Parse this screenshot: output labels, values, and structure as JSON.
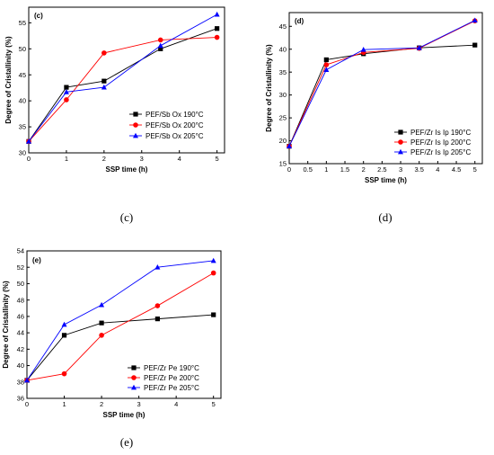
{
  "chart_data": [
    {
      "type": "line",
      "panel_tag": "(c)",
      "caption": "(c)",
      "xlabel": "SSP time (h)",
      "ylabel": "Degree of Cristallinity (%)",
      "xlim": [
        0,
        5.2
      ],
      "ylim": [
        30,
        58
      ],
      "xticks": [
        0,
        1,
        2,
        3,
        4,
        5
      ],
      "yticks": [
        30,
        35,
        40,
        45,
        50,
        55
      ],
      "legend_position": "lower-right",
      "x": [
        0,
        1,
        2,
        3.5,
        5
      ],
      "series": [
        {
          "name": "PEF/Sb Ox  190°C",
          "color": "#000000",
          "marker": "square",
          "values": [
            32.2,
            42.6,
            43.8,
            50.0,
            53.9
          ]
        },
        {
          "name": "PEF/Sb Ox  200°C",
          "color": "#ff0000",
          "marker": "circle",
          "values": [
            32.2,
            40.2,
            49.2,
            51.7,
            52.2
          ]
        },
        {
          "name": "PEF/Sb Ox 205°C",
          "color": "#0000ff",
          "marker": "triangle",
          "values": [
            32.2,
            41.7,
            42.6,
            50.6,
            56.6
          ]
        }
      ]
    },
    {
      "type": "line",
      "panel_tag": "(d)",
      "caption": "(d)",
      "xlabel": "SSP time (h)",
      "ylabel": "Degree of Cristallinity (%)",
      "xlim": [
        0,
        5.2
      ],
      "ylim": [
        15,
        48
      ],
      "xticks": [
        0,
        0.5,
        1,
        1.5,
        2,
        2.5,
        3,
        3.5,
        4,
        4.5,
        5
      ],
      "yticks": [
        15,
        20,
        25,
        30,
        35,
        40,
        45
      ],
      "legend_position": "lower-right",
      "x": [
        0,
        1,
        2,
        3.5,
        5
      ],
      "series": [
        {
          "name": "PEF/Zr Is Ip 190°C",
          "color": "#000000",
          "marker": "square",
          "values": [
            18.8,
            37.7,
            39.0,
            40.3,
            40.9
          ]
        },
        {
          "name": "PEF/Zr Is Ip 200°C",
          "color": "#ff0000",
          "marker": "circle",
          "values": [
            18.8,
            36.6,
            39.3,
            40.2,
            46.2
          ]
        },
        {
          "name": "PEF/Zr Is Ip 205°C",
          "color": "#0000ff",
          "marker": "triangle",
          "values": [
            18.8,
            35.5,
            39.9,
            40.3,
            46.3
          ]
        }
      ]
    },
    {
      "type": "line",
      "panel_tag": "(e)",
      "caption": "(e)",
      "xlabel": "SSP time (h)",
      "ylabel": "Degree of Cristallinity (%)",
      "xlim": [
        0,
        5.2
      ],
      "ylim": [
        36,
        54
      ],
      "xticks": [
        0,
        1,
        2,
        3,
        4,
        5
      ],
      "yticks": [
        36,
        38,
        40,
        42,
        44,
        46,
        48,
        50,
        52,
        54
      ],
      "legend_position": "lower-right",
      "x": [
        0,
        1,
        2,
        3.5,
        5
      ],
      "series": [
        {
          "name": "PEF/Zr Pe 190°C",
          "color": "#000000",
          "marker": "square",
          "values": [
            38.2,
            43.7,
            45.2,
            45.7,
            46.2
          ]
        },
        {
          "name": "PEF/Zr Pe 200°C",
          "color": "#ff0000",
          "marker": "circle",
          "values": [
            38.2,
            39.0,
            43.7,
            47.3,
            51.3
          ]
        },
        {
          "name": "PEF/Zr Pe 205°C",
          "color": "#0000ff",
          "marker": "triangle",
          "values": [
            38.2,
            45.0,
            47.4,
            52.0,
            52.8
          ]
        }
      ]
    }
  ]
}
